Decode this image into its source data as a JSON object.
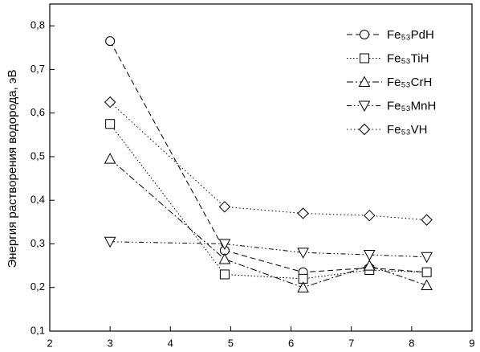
{
  "chart_data": {
    "type": "line",
    "y_label": "Энергия растворения водорода, эВ",
    "x": [
      3,
      4.9,
      6.2,
      7.3,
      8.25
    ],
    "xlim": [
      2,
      9
    ],
    "xticks": [
      2,
      3,
      4,
      5,
      6,
      7,
      8,
      9
    ],
    "ylim": [
      0.1,
      0.85
    ],
    "yticks": [
      {
        "value": 0.1,
        "label": "0,1"
      },
      {
        "value": 0.2,
        "label": "0,2"
      },
      {
        "value": 0.3,
        "label": "0,3"
      },
      {
        "value": 0.4,
        "label": "0,4"
      },
      {
        "value": 0.5,
        "label": "0,5"
      },
      {
        "value": 0.6,
        "label": "0,6"
      },
      {
        "value": 0.7,
        "label": "0,7"
      },
      {
        "value": 0.8,
        "label": "0,8"
      }
    ],
    "legend": "upper right",
    "series": [
      {
        "name": "Fe₅₃PdH",
        "color": "#000000",
        "marker": "circle",
        "dash": "7,4",
        "values": [
          0.765,
          0.285,
          0.235,
          0.245,
          0.235
        ]
      },
      {
        "name": "Fe₅₃TiH",
        "color": "#000000",
        "marker": "square",
        "dash": "1.5,2.5",
        "values": [
          0.575,
          0.23,
          0.22,
          0.24,
          0.235
        ]
      },
      {
        "name": "Fe₅₃CrH",
        "color": "#000000",
        "marker": "triangle-up",
        "dash": "8,3,2,3",
        "values": [
          0.495,
          0.265,
          0.2,
          0.25,
          0.205
        ]
      },
      {
        "name": "Fe₅₃MnH",
        "color": "#000000",
        "marker": "triangle-down",
        "dash": "6,3,1.5,3,1.5,3",
        "values": [
          0.305,
          0.3,
          0.28,
          0.275,
          0.27
        ]
      },
      {
        "name": "Fe₅₃VH",
        "color": "#000000",
        "marker": "diamond",
        "dash": "1.5,3",
        "values": [
          0.625,
          0.385,
          0.37,
          0.365,
          0.355
        ]
      }
    ]
  }
}
